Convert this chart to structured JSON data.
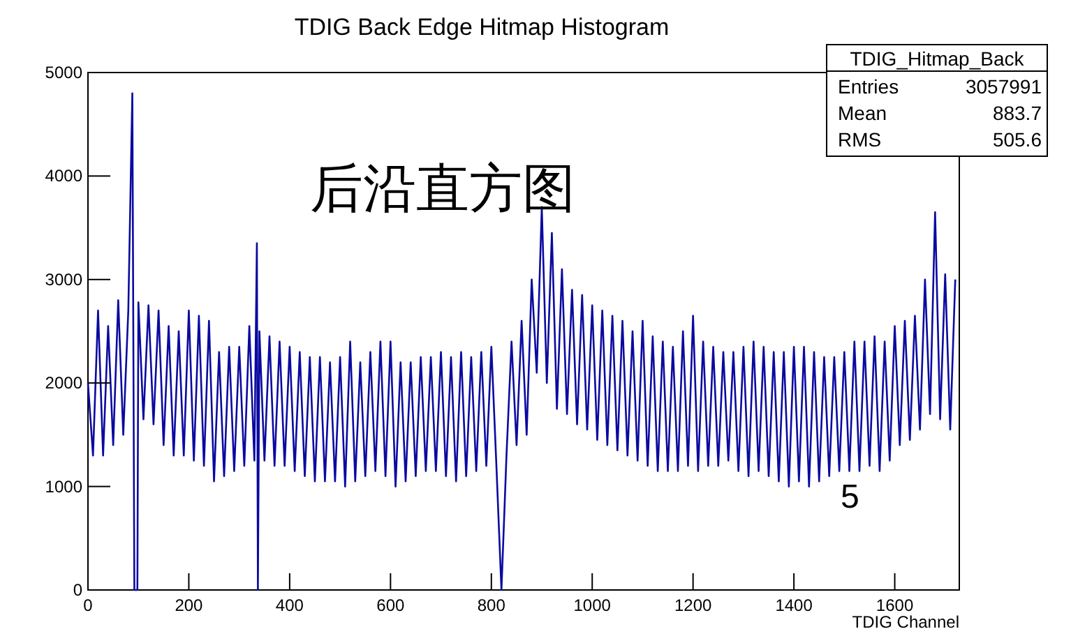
{
  "chart_data": {
    "type": "line",
    "title": "TDIG Back Edge Hitmap Histogram",
    "xlabel": "TDIG Channel",
    "annotations": [
      "后沿直方图",
      "5",
      "TDIG_Hitmap_Back",
      "Entries",
      "3057991",
      "Mean",
      "883.7",
      "RMS",
      "505.6"
    ],
    "xlim": [
      0,
      1728
    ],
    "ylim": [
      0,
      5000
    ],
    "xticks": [
      0,
      200,
      400,
      600,
      800,
      1000,
      1200,
      1400,
      1600
    ],
    "yticks": [
      0,
      1000,
      2000,
      3000,
      4000,
      5000
    ],
    "grid": false,
    "line_style": "solid",
    "series": [
      {
        "color": "#0a0aa0",
        "x": [
          0,
          10,
          20,
          30,
          40,
          50,
          60,
          70,
          80,
          88,
          92,
          98,
          100,
          110,
          120,
          130,
          140,
          150,
          160,
          170,
          180,
          190,
          200,
          210,
          220,
          230,
          240,
          250,
          260,
          270,
          280,
          290,
          300,
          310,
          320,
          330,
          335,
          337,
          340,
          350,
          360,
          370,
          380,
          390,
          400,
          410,
          420,
          430,
          440,
          450,
          460,
          470,
          480,
          490,
          500,
          510,
          520,
          530,
          540,
          550,
          560,
          570,
          580,
          590,
          600,
          610,
          620,
          630,
          640,
          650,
          660,
          670,
          680,
          690,
          700,
          710,
          720,
          730,
          740,
          750,
          760,
          770,
          780,
          790,
          800,
          810,
          820,
          830,
          840,
          850,
          860,
          870,
          880,
          890,
          900,
          910,
          920,
          930,
          940,
          950,
          960,
          970,
          980,
          990,
          1000,
          1010,
          1020,
          1030,
          1040,
          1050,
          1060,
          1070,
          1080,
          1090,
          1100,
          1110,
          1120,
          1130,
          1140,
          1150,
          1160,
          1170,
          1180,
          1190,
          1200,
          1210,
          1220,
          1230,
          1240,
          1250,
          1260,
          1270,
          1280,
          1290,
          1300,
          1310,
          1320,
          1330,
          1340,
          1350,
          1360,
          1370,
          1380,
          1390,
          1400,
          1410,
          1420,
          1430,
          1440,
          1450,
          1460,
          1470,
          1480,
          1490,
          1500,
          1510,
          1520,
          1530,
          1540,
          1550,
          1560,
          1570,
          1580,
          1590,
          1600,
          1610,
          1620,
          1630,
          1640,
          1650,
          1660,
          1670,
          1680,
          1690,
          1700,
          1710,
          1720
        ],
        "values": [
          2000,
          1300,
          2700,
          1300,
          2550,
          1400,
          2800,
          1500,
          2700,
          4800,
          0,
          0,
          2780,
          1650,
          2750,
          1600,
          2700,
          1400,
          2550,
          1300,
          2500,
          1300,
          2700,
          1250,
          2650,
          1200,
          2600,
          1050,
          2300,
          1100,
          2350,
          1150,
          2350,
          1200,
          2550,
          1250,
          3350,
          0,
          2500,
          1250,
          2450,
          1200,
          2400,
          1200,
          2350,
          1150,
          2300,
          1100,
          2250,
          1050,
          2250,
          1050,
          2200,
          1050,
          2250,
          1000,
          2400,
          1050,
          2200,
          1100,
          2300,
          1150,
          2400,
          1100,
          2400,
          1000,
          2200,
          1050,
          2200,
          1100,
          2250,
          1150,
          2250,
          1150,
          2300,
          1100,
          2250,
          1050,
          2300,
          1100,
          2250,
          1150,
          2300,
          1200,
          2350,
          1200,
          0,
          1300,
          2400,
          1400,
          2600,
          1500,
          3000,
          2100,
          3700,
          2000,
          3450,
          1750,
          3100,
          1700,
          2900,
          1600,
          2850,
          1550,
          2750,
          1450,
          2700,
          1400,
          2650,
          1350,
          2600,
          1300,
          2500,
          1250,
          2600,
          1200,
          2450,
          1150,
          2400,
          1150,
          2350,
          1150,
          2500,
          1200,
          2650,
          1150,
          2400,
          1200,
          2350,
          1200,
          2300,
          1250,
          2300,
          1150,
          2350,
          1100,
          2400,
          1150,
          2350,
          1100,
          2300,
          1050,
          2300,
          1000,
          2350,
          1050,
          2350,
          1000,
          2300,
          1050,
          2250,
          1100,
          2250,
          1150,
          2300,
          1150,
          2400,
          1150,
          2400,
          1200,
          2450,
          1150,
          2400,
          1250,
          2550,
          1400,
          2600,
          1450,
          2650,
          1550,
          3000,
          1700,
          3650,
          1650,
          3050,
          1550,
          3000
        ]
      }
    ]
  }
}
